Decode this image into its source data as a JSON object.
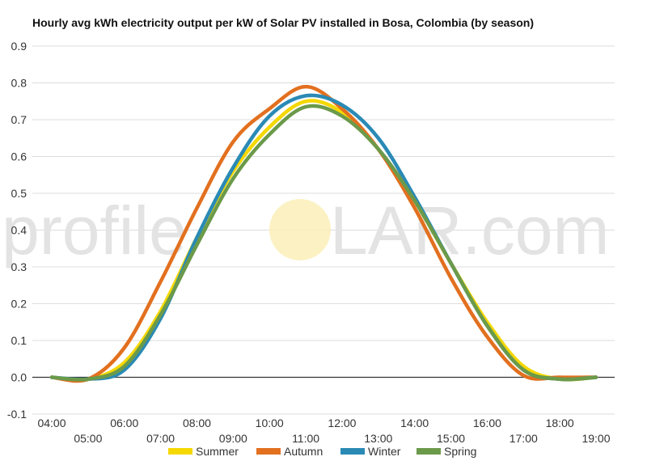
{
  "chart_data": {
    "type": "line",
    "title": "Hourly avg kWh electricity output per kW of Solar PV installed in Bosa, Colombia (by season)",
    "xlabel": "",
    "ylabel": "",
    "x": [
      "04:00",
      "05:00",
      "06:00",
      "07:00",
      "08:00",
      "09:00",
      "10:00",
      "11:00",
      "12:00",
      "13:00",
      "14:00",
      "15:00",
      "16:00",
      "17:00",
      "18:00",
      "19:00"
    ],
    "ylim": [
      -0.1,
      0.9
    ],
    "yticks": [
      "-0.1",
      "0.0",
      "0.1",
      "0.2",
      "0.3",
      "0.4",
      "0.5",
      "0.6",
      "0.7",
      "0.8",
      "0.9"
    ],
    "grid": true,
    "legend_position": "bottom",
    "watermark": {
      "left": "profile",
      "right": "LAR.com"
    },
    "series": [
      {
        "name": "Summer",
        "color": "#f5d800",
        "values": [
          0.0,
          -0.005,
          0.04,
          0.18,
          0.38,
          0.56,
          0.68,
          0.75,
          0.72,
          0.62,
          0.48,
          0.31,
          0.15,
          0.03,
          -0.005,
          0.0
        ]
      },
      {
        "name": "Autumn",
        "color": "#e2701f",
        "values": [
          0.0,
          -0.005,
          0.08,
          0.26,
          0.46,
          0.64,
          0.73,
          0.79,
          0.73,
          0.62,
          0.46,
          0.27,
          0.11,
          0.005,
          0.0,
          0.0
        ]
      },
      {
        "name": "Winter",
        "color": "#2a8ab5",
        "values": [
          0.0,
          -0.005,
          0.02,
          0.16,
          0.38,
          0.57,
          0.71,
          0.765,
          0.74,
          0.65,
          0.49,
          0.31,
          0.14,
          0.02,
          -0.005,
          0.0
        ]
      },
      {
        "name": "Spring",
        "color": "#6b9a4a",
        "values": [
          0.0,
          -0.005,
          0.03,
          0.17,
          0.36,
          0.54,
          0.66,
          0.735,
          0.71,
          0.62,
          0.48,
          0.31,
          0.14,
          0.02,
          -0.005,
          0.0
        ]
      }
    ]
  }
}
